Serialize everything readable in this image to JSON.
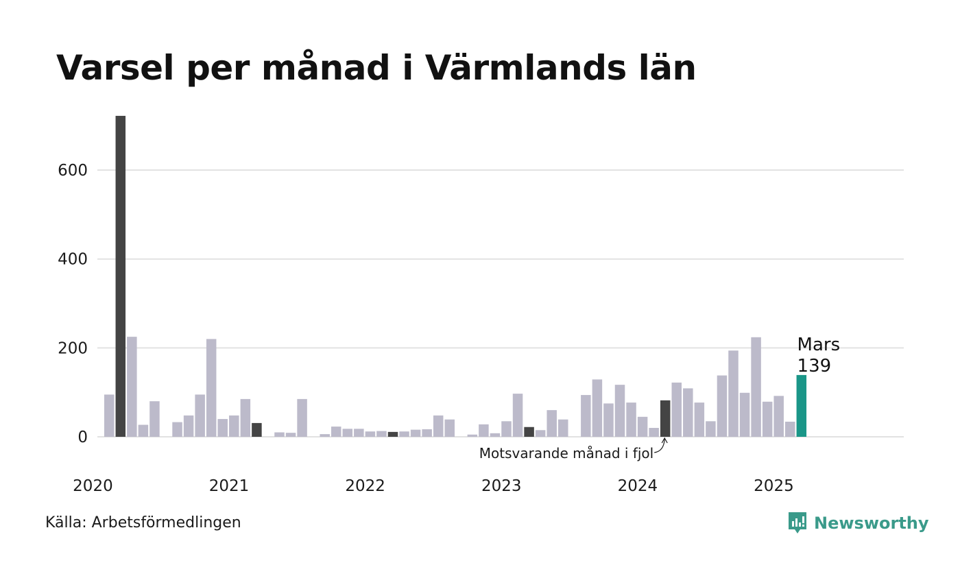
{
  "title": "Varsel per månad i Värmlands län",
  "source": "Källa: Arbetsförmedlingen",
  "brand": {
    "name": "Newsworthy",
    "icon": "newsworthy-logo-icon",
    "color": "#3a9a8a"
  },
  "colors": {
    "bar": "#bcbaca",
    "comparison": "#444444",
    "current": "#1a9688",
    "grid": "#e2e2e2"
  },
  "chart_data": {
    "type": "bar",
    "title": "Varsel per månad i Värmlands län",
    "xlabel": "",
    "ylabel": "",
    "ylim": [
      0,
      725
    ],
    "yticks": [
      0,
      200,
      400,
      600
    ],
    "xticks": [
      "2020",
      "2021",
      "2022",
      "2023",
      "2024",
      "2025"
    ],
    "grid": true,
    "categories": [
      "2020-02",
      "2020-03",
      "2020-04",
      "2020-05",
      "2020-06",
      "2020-07",
      "2020-08",
      "2020-09",
      "2020-10",
      "2020-11",
      "2020-12",
      "2021-01",
      "2021-02",
      "2021-03",
      "2021-04",
      "2021-05",
      "2021-06",
      "2021-07",
      "2021-08",
      "2021-09",
      "2021-10",
      "2021-11",
      "2021-12",
      "2022-01",
      "2022-02",
      "2022-03",
      "2022-04",
      "2022-05",
      "2022-06",
      "2022-07",
      "2022-08",
      "2022-09",
      "2022-10",
      "2022-11",
      "2022-12",
      "2023-01",
      "2023-02",
      "2023-03",
      "2023-04",
      "2023-05",
      "2023-06",
      "2023-07",
      "2023-08",
      "2023-09",
      "2023-10",
      "2023-11",
      "2023-12",
      "2024-01",
      "2024-02",
      "2024-03",
      "2024-04",
      "2024-05",
      "2024-06",
      "2024-07",
      "2024-08",
      "2024-09",
      "2024-10",
      "2024-11",
      "2024-12",
      "2025-01",
      "2025-02",
      "2025-03"
    ],
    "values": [
      95,
      722,
      225,
      27,
      80,
      0,
      33,
      48,
      95,
      220,
      40,
      48,
      85,
      31,
      0,
      10,
      9,
      85,
      0,
      6,
      23,
      18,
      18,
      12,
      13,
      11,
      12,
      16,
      17,
      48,
      39,
      0,
      5,
      28,
      8,
      35,
      97,
      22,
      15,
      60,
      39,
      0,
      94,
      129,
      75,
      117,
      77,
      45,
      20,
      82,
      122,
      109,
      77,
      35,
      138,
      194,
      99,
      224,
      79,
      92,
      34,
      139
    ],
    "comparison_months": [
      "2020-03",
      "2021-03",
      "2022-03",
      "2023-03",
      "2024-03"
    ],
    "current_month": "2025-03",
    "annotations": {
      "current_label": "Mars",
      "current_value": "139",
      "comparison_label": "Motsvarande månad i fjol"
    }
  }
}
